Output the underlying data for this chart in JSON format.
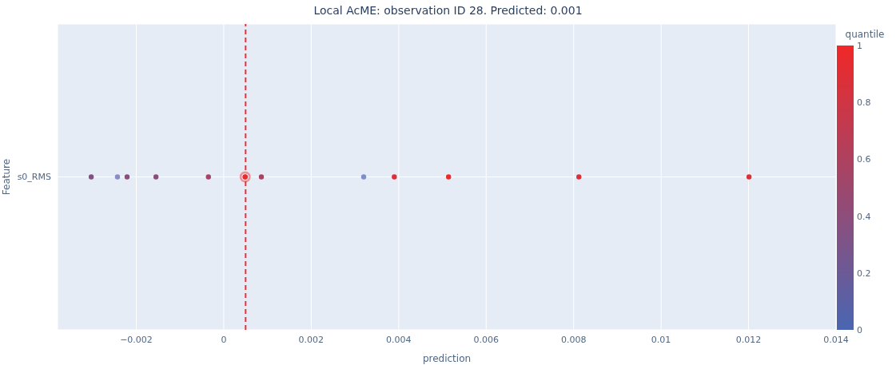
{
  "chart_data": {
    "type": "scatter",
    "title": "Local AcME: observation ID 28. Predicted: 0.001",
    "xlabel": "prediction",
    "ylabel": "Feature",
    "clabel": "quantile",
    "orientation": "horizontal",
    "categories": [
      "s0_RMS"
    ],
    "series": [
      {
        "x": [
          "s0_RMS",
          "s0_RMS",
          "s0_RMS",
          "s0_RMS",
          "s0_RMS",
          "s0_RMS",
          "s0_RMS",
          "s0_RMS",
          "s0_RMS",
          "s0_RMS",
          "s0_RMS"
        ],
        "values": [
          -0.00303,
          -0.00243,
          -0.00221,
          -0.00155,
          -0.00035,
          0.00086,
          0.0032,
          0.0039,
          0.00514,
          0.00812,
          0.01201
        ],
        "colors": [
          "#845082",
          "#8a8cc4",
          "#8c4d7b",
          "#8c4d7b",
          "#a54466",
          "#ae415f",
          "#7f8fc9",
          "#df2e36",
          "#f02828",
          "#df2e36",
          "#df2e36"
        ]
      },
      {
        "x": [
          "s0_RMS"
        ],
        "values": [
          0.00049
        ],
        "colors": [
          "#e82b2f"
        ]
      }
    ],
    "xlim": [
      -0.0038,
      0.014
    ],
    "xticks": [
      {
        "value": -0.002,
        "label": "−0.002"
      },
      0,
      0.002,
      0.004,
      0.006,
      0.008,
      0.01,
      0.012,
      0.014
    ],
    "clim": [
      0,
      1
    ],
    "cticks": [
      0,
      0.2,
      0.4,
      0.6,
      0.8,
      1
    ],
    "ref_lines": [
      {
        "axis": "x",
        "value": 0.0005,
        "color": "#e8323c",
        "line_style": "dashed"
      }
    ],
    "grid": true,
    "marker": "circle"
  }
}
